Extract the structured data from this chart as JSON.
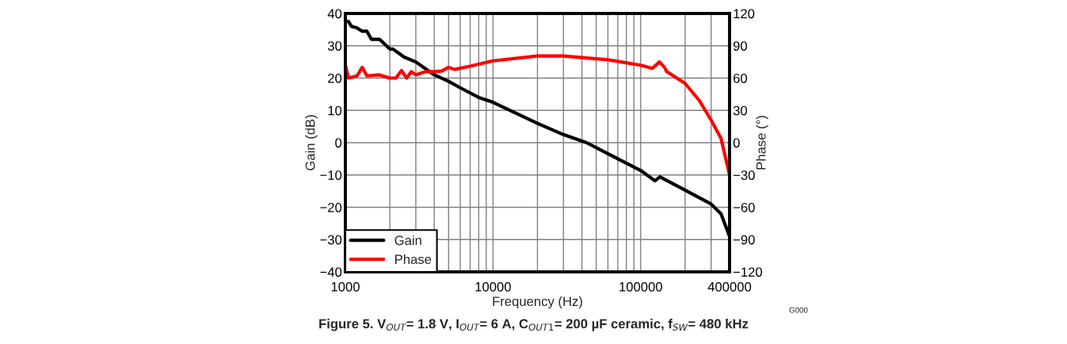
{
  "chart_data": {
    "type": "line",
    "title": "Figure 5. V$_{OUT}$= 1.8 V, I$_{OUT}$= 6 A, C$_{OUT1}$= 200 µF ceramic, f$_{SW}$= 480 kHz",
    "xlabel": "Frequency (Hz)",
    "ylabel": "Gain (dB)",
    "y2label": "Phase (°)",
    "annotations": [
      "G000"
    ],
    "log": "x",
    "grid": true,
    "legend": "bottom left",
    "xlim": [
      1000,
      400000
    ],
    "xticks": [
      1000,
      {
        "value": 2000,
        "label": null
      },
      {
        "value": 3000,
        "label": null
      },
      {
        "value": 4000,
        "label": null
      },
      {
        "value": 5000,
        "label": null
      },
      {
        "value": 6000,
        "label": null
      },
      {
        "value": 7000,
        "label": null
      },
      {
        "value": 8000,
        "label": null
      },
      {
        "value": 9000,
        "label": null
      },
      10000,
      {
        "value": 20000,
        "label": null
      },
      {
        "value": 30000,
        "label": null
      },
      {
        "value": 40000,
        "label": null
      },
      {
        "value": 50000,
        "label": null
      },
      {
        "value": 60000,
        "label": null
      },
      {
        "value": 70000,
        "label": null
      },
      {
        "value": 80000,
        "label": null
      },
      {
        "value": 90000,
        "label": null
      },
      100000,
      {
        "value": 200000,
        "label": null
      },
      {
        "value": 300000,
        "label": null
      },
      400000
    ],
    "ylim": [
      -40,
      40
    ],
    "yticks": [
      -40,
      -30,
      -20,
      -10,
      0,
      10,
      20,
      30,
      40
    ],
    "y2lim": [
      -120,
      120
    ],
    "y2ticks": [
      -120,
      -90,
      -60,
      -30,
      0,
      30,
      60,
      90,
      120
    ],
    "series": [
      {
        "name": "Gain",
        "color": "#000000",
        "x": [
          1000,
          1050,
          1100,
          1200,
          1300,
          1400,
          1500,
          1700,
          1800,
          2000,
          2100,
          2500,
          3000,
          4000,
          5000,
          6000,
          8000,
          10000,
          20000,
          30000,
          43000,
          100000,
          125000,
          135000,
          200000,
          300000,
          350000,
          400000
        ],
        "values": [
          37.5,
          37.5,
          36,
          35.5,
          34.5,
          34.5,
          32,
          32,
          31,
          29,
          29,
          26.5,
          25,
          21,
          19,
          17,
          14,
          12.5,
          6,
          2.5,
          0,
          -8.6,
          -11.8,
          -10.6,
          -14.7,
          -19,
          -22,
          -29
        ]
      },
      {
        "name": "Phase",
        "color": "#ff0000",
        "axis": "y2",
        "x": [
          1000,
          1050,
          1200,
          1300,
          1400,
          1700,
          2000,
          2200,
          2400,
          2600,
          2800,
          3000,
          3500,
          4000,
          4500,
          5000,
          5500,
          7000,
          10000,
          20000,
          30000,
          60000,
          100000,
          120000,
          134000,
          145000,
          150000,
          200000,
          250000,
          300000,
          350000,
          400000
        ],
        "values": [
          72,
          60,
          62,
          70,
          62,
          63,
          60,
          60,
          67,
          60,
          66,
          63,
          66,
          66,
          66.5,
          70,
          68,
          71,
          76,
          80.5,
          80.5,
          77,
          72,
          69,
          75,
          70,
          66,
          55,
          39,
          21,
          4,
          -30
        ]
      }
    ]
  }
}
